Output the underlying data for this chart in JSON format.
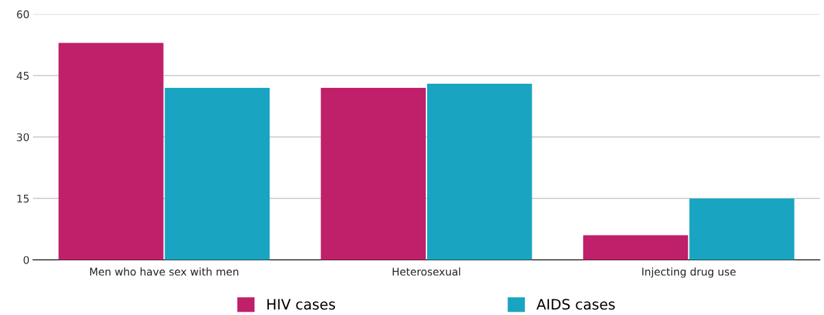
{
  "chart_data": {
    "type": "bar",
    "categories": [
      "Men who have sex with men",
      "Heterosexual",
      "Injecting drug use"
    ],
    "series": [
      {
        "name": "HIV cases",
        "color": "#c0206a",
        "values": [
          53,
          42,
          6
        ]
      },
      {
        "name": "AIDS cases",
        "color": "#19a5c1",
        "values": [
          42,
          43,
          15
        ]
      }
    ],
    "ylim": [
      0,
      60
    ],
    "yticks": [
      0,
      15,
      30,
      45,
      60
    ],
    "grid": "y",
    "legend": "bottom"
  }
}
